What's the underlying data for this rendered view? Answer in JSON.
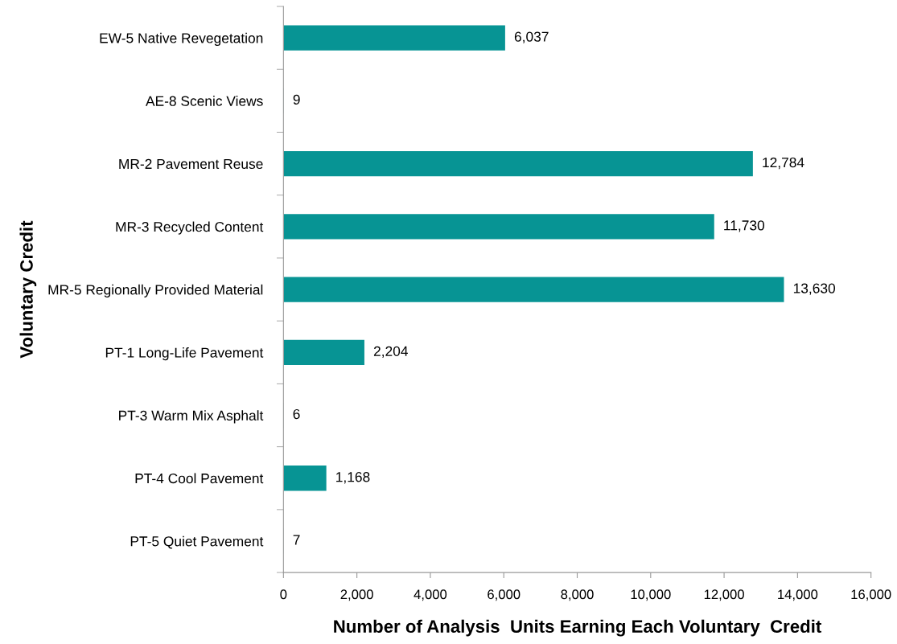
{
  "chart_data": {
    "type": "bar",
    "orientation": "horizontal",
    "categories": [
      "EW-5 Native Revegetation",
      "AE-8 Scenic Views",
      "MR-2 Pavement Reuse",
      "MR-3 Recycled Content",
      "MR-5 Regionally Provided Material",
      "PT-1 Long-Life Pavement",
      "PT-3 Warm Mix Asphalt",
      "PT-4 Cool Pavement",
      "PT-5 Quiet Pavement"
    ],
    "values": [
      6037,
      9,
      12784,
      11730,
      13630,
      2204,
      6,
      1168,
      7
    ],
    "value_labels": [
      "6,037",
      "9",
      "12,784",
      "11,730",
      "13,630",
      "2,204",
      "6",
      "1,168",
      "7"
    ],
    "color": "#079494",
    "xlabel": "Number of Analysis  Units Earning Each Voluntary  Credit",
    "ylabel": "Voluntary Credit",
    "xlim": [
      0,
      16000
    ],
    "xticks": [
      {
        "value": 0,
        "label": "0"
      },
      {
        "value": 2000,
        "label": "2,000"
      },
      {
        "value": 4000,
        "label": "4,000"
      },
      {
        "value": 6000,
        "label": "6,000"
      },
      {
        "value": 8000,
        "label": "8,000"
      },
      {
        "value": 10000,
        "label": "10,000"
      },
      {
        "value": 12000,
        "label": "12,000"
      },
      {
        "value": 14000,
        "label": "14,000"
      },
      {
        "value": 16000,
        "label": "16,000"
      }
    ],
    "grid": false,
    "legend": false
  }
}
